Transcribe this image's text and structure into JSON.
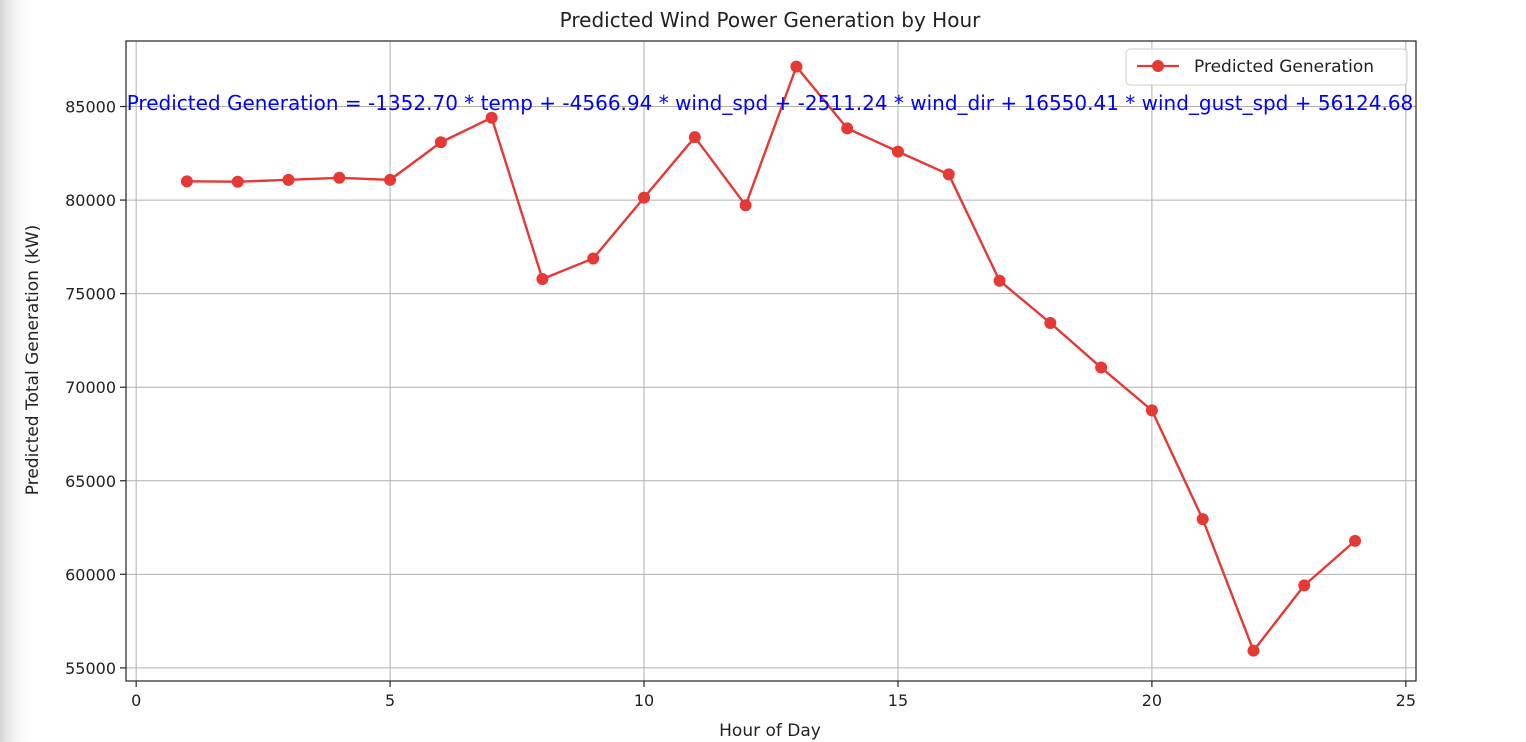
{
  "chart_data": {
    "type": "line",
    "title": "Predicted Wind Power Generation by Hour",
    "xlabel": "Hour of Day",
    "ylabel": "Predicted Total Generation (kW)",
    "xlim": [
      -0.2,
      25.2
    ],
    "ylim": [
      54300,
      88500
    ],
    "xticks": [
      0,
      5,
      10,
      15,
      20,
      25
    ],
    "yticks": [
      55000,
      60000,
      65000,
      70000,
      75000,
      80000,
      85000
    ],
    "grid": true,
    "legend_position": "top-right",
    "series": [
      {
        "name": "Predicted Generation",
        "color": "#e53935",
        "marker": "circle",
        "x": [
          1,
          2,
          3,
          4,
          5,
          6,
          7,
          8,
          9,
          10,
          11,
          12,
          13,
          14,
          15,
          16,
          17,
          18,
          19,
          20,
          21,
          22,
          23,
          24
        ],
        "y": [
          81000,
          80980,
          81080,
          81190,
          81080,
          83090,
          84400,
          75780,
          76880,
          80130,
          83360,
          79720,
          87130,
          83830,
          82590,
          81370,
          75690,
          73430,
          71050,
          68760,
          62950,
          55920,
          59410,
          61790
        ]
      }
    ],
    "annotation": {
      "text": "Predicted Generation = -1352.70 * temp + -4566.94 * wind_spd + -2511.24 * wind_dir + 16550.41 * wind_gust_spd + 56124.68",
      "color": "#0000ff"
    }
  }
}
